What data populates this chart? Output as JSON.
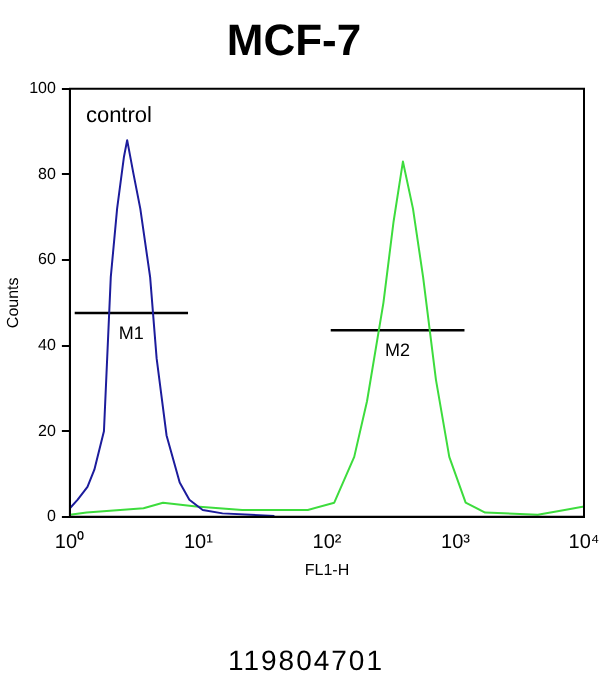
{
  "chart_data": {
    "type": "line",
    "title": "MCF-7",
    "xlabel": "FL1-H",
    "ylabel": "Counts",
    "log": "x",
    "grid": false,
    "legend": false,
    "marker": "none",
    "xlim": [
      1,
      10000
    ],
    "xticks": [
      {
        "value": 1,
        "label": "10⁰"
      },
      {
        "value": 10,
        "label": "10¹"
      },
      {
        "value": 100,
        "label": "10²"
      },
      {
        "value": 1000,
        "label": "10³"
      },
      {
        "value": 10000,
        "label": "10⁴"
      }
    ],
    "ylim": [
      0,
      100
    ],
    "yticks": [
      0,
      20,
      40,
      60,
      80,
      100
    ],
    "series": [
      {
        "color": "#1c1c9c",
        "x": [
          1,
          1.15,
          1.37,
          1.55,
          1.84,
          2.08,
          2.33,
          2.63,
          2.79,
          3.13,
          3.53,
          4.21,
          4.73,
          5.65,
          7.15,
          8.5,
          10.8,
          15.4,
          39
        ],
        "values": [
          2,
          4,
          7,
          11,
          20,
          56,
          72,
          84,
          88,
          80,
          72,
          56,
          37,
          19,
          8,
          4,
          1.6,
          0.8,
          0.2
        ]
      },
      {
        "color": "#3ddc3d",
        "x": [
          1,
          1.35,
          3.74,
          5.3,
          9.6,
          21.9,
          71,
          114,
          163,
          205,
          275,
          330,
          390,
          467,
          560,
          705,
          895,
          1200,
          1700,
          4370,
          7070,
          10000
        ],
        "values": [
          0.5,
          1,
          2,
          3.3,
          2.4,
          1.6,
          1.6,
          3.3,
          14,
          27,
          50,
          69,
          83,
          72,
          56,
          32,
          14,
          3.3,
          1,
          0.5,
          1.6,
          2.4
        ]
      },
      {
        "name": "M1",
        "color": "#000000",
        "x": [
          1.09,
          8.3
        ],
        "values": [
          47.6,
          47.6
        ]
      },
      {
        "name": "M2",
        "color": "#000000",
        "x": [
          107,
          1175
        ],
        "values": [
          43.6,
          43.6
        ]
      }
    ],
    "annotations": [
      "control",
      "119804701"
    ]
  }
}
